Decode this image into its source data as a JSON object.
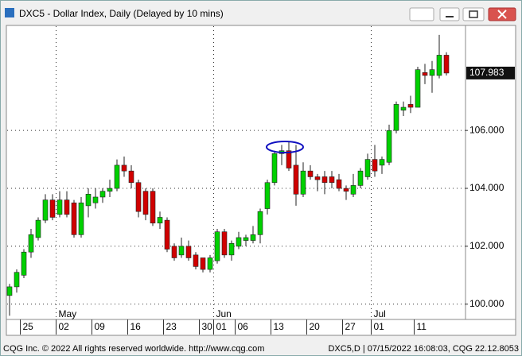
{
  "window_title": "DXC5 - Dollar Index, Daily (Delayed by 10 mins)",
  "footer_left": "CQG Inc. © 2022 All rights reserved worldwide. http://www.cqg.com",
  "footer_right": "DXC5,D | 07/15/2022 16:08:03, CQG 22.12.8053",
  "chart_data": {
    "type": "candlestick",
    "categories": [
      null,
      null,
      "25",
      null,
      null,
      null,
      null,
      "02",
      null,
      null,
      null,
      null,
      "09",
      null,
      null,
      null,
      null,
      "16",
      null,
      null,
      null,
      null,
      "23",
      null,
      null,
      null,
      null,
      "30",
      null,
      "01",
      null,
      null,
      "06",
      null,
      null,
      null,
      null,
      "13",
      null,
      null,
      null,
      null,
      "20",
      null,
      null,
      null,
      null,
      "27",
      null,
      null,
      null,
      "01",
      null,
      null,
      null,
      null,
      null,
      "11",
      null,
      null,
      null,
      null
    ],
    "month_labels": [
      null,
      null,
      null,
      null,
      null,
      null,
      null,
      "May",
      null,
      null,
      null,
      null,
      null,
      null,
      null,
      null,
      null,
      null,
      null,
      null,
      null,
      null,
      null,
      null,
      null,
      null,
      null,
      null,
      null,
      "Jun",
      null,
      null,
      null,
      null,
      null,
      null,
      null,
      null,
      null,
      null,
      null,
      null,
      null,
      null,
      null,
      null,
      null,
      null,
      null,
      null,
      null,
      "Jul",
      null,
      null,
      null,
      null,
      null,
      null,
      null,
      null,
      null,
      null
    ],
    "open": [
      100.3,
      100.6,
      101.0,
      101.8,
      102.3,
      102.9,
      103.6,
      103.1,
      103.6,
      103.5,
      102.4,
      103.4,
      103.5,
      103.7,
      103.9,
      104.0,
      104.8,
      104.6,
      104.2,
      103.9,
      103.9,
      102.8,
      102.9,
      102.0,
      101.7,
      102.0,
      101.7,
      101.6,
      101.2,
      101.5,
      102.5,
      101.7,
      102.0,
      102.2,
      102.2,
      102.4,
      103.3,
      104.2,
      105.2,
      105.3,
      104.8,
      103.8,
      104.6,
      104.4,
      104.4,
      104.4,
      104.3,
      104.0,
      103.8,
      104.1,
      104.4,
      105.0,
      104.8,
      104.9,
      106.0,
      106.7,
      106.9,
      106.8,
      108.0,
      107.9,
      107.9,
      108.6
    ],
    "high": [
      100.7,
      101.2,
      101.9,
      102.6,
      103.0,
      103.8,
      103.8,
      103.9,
      103.9,
      103.6,
      103.7,
      104.0,
      104.0,
      104.0,
      104.3,
      105.0,
      105.1,
      104.8,
      104.3,
      104.0,
      104.0,
      103.2,
      103.0,
      102.1,
      102.3,
      102.2,
      101.8,
      101.6,
      101.7,
      102.6,
      102.6,
      102.2,
      102.5,
      102.4,
      102.7,
      103.3,
      104.3,
      105.3,
      105.5,
      105.6,
      105.5,
      104.9,
      104.8,
      104.5,
      104.6,
      104.6,
      104.5,
      104.1,
      104.5,
      104.7,
      105.2,
      105.5,
      105.1,
      106.2,
      107.0,
      107.0,
      107.2,
      108.2,
      108.3,
      108.4,
      109.3,
      108.7
    ],
    "low": [
      99.6,
      100.4,
      100.9,
      101.6,
      102.2,
      102.8,
      102.9,
      103.0,
      103.0,
      102.3,
      102.3,
      103.0,
      103.3,
      103.5,
      103.7,
      103.9,
      104.4,
      104.0,
      103.0,
      102.9,
      102.7,
      102.6,
      101.8,
      101.5,
      101.6,
      101.5,
      101.2,
      101.1,
      101.1,
      101.4,
      101.6,
      101.5,
      101.9,
      102.0,
      102.1,
      102.1,
      103.1,
      104.1,
      104.8,
      104.6,
      103.4,
      103.7,
      104.3,
      103.9,
      103.8,
      104.0,
      103.9,
      103.6,
      103.7,
      104.0,
      104.3,
      104.4,
      104.5,
      104.8,
      105.9,
      106.5,
      106.6,
      106.8,
      107.6,
      107.3,
      107.8,
      107.9
    ],
    "close": [
      100.6,
      101.1,
      101.8,
      102.4,
      102.9,
      103.6,
      103.0,
      103.6,
      103.1,
      102.4,
      103.5,
      103.8,
      103.7,
      103.9,
      104.0,
      104.8,
      104.6,
      104.2,
      103.2,
      103.1,
      102.8,
      103.0,
      101.9,
      101.6,
      102.0,
      101.6,
      101.3,
      101.2,
      101.6,
      102.5,
      101.7,
      102.1,
      102.3,
      102.3,
      102.4,
      103.2,
      104.2,
      105.2,
      105.3,
      104.7,
      103.8,
      104.6,
      104.4,
      104.3,
      104.2,
      104.2,
      104.0,
      103.9,
      104.1,
      104.6,
      105.0,
      104.6,
      105.0,
      106.0,
      106.9,
      106.8,
      106.8,
      108.1,
      107.9,
      108.1,
      108.6,
      107.983
    ],
    "last_value": 107.983,
    "ylim": [
      99.5,
      109.6
    ],
    "yticks": [
      {
        "value": 100,
        "label": "100.000"
      },
      {
        "value": 102,
        "label": "102.000"
      },
      {
        "value": 104,
        "label": "104.000"
      },
      {
        "value": 106,
        "label": "106.000"
      }
    ],
    "up_color": "#00d000",
    "down_color": "#d00000",
    "grid": true
  }
}
